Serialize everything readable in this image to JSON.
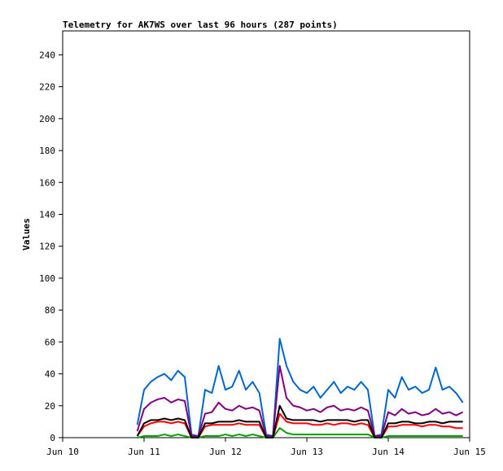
{
  "chart_data": {
    "type": "line",
    "title": "Telemetry for AK7WS over last 96 hours (287 points)",
    "y_label": "Values",
    "x": [
      22,
      24,
      26,
      28,
      30,
      32,
      34,
      36,
      38,
      40,
      42,
      44,
      46,
      48,
      50,
      52,
      54,
      56,
      58,
      60,
      62,
      64,
      66,
      68,
      70,
      72,
      74,
      76,
      78,
      80,
      82,
      84,
      86,
      88,
      90,
      92,
      94,
      96,
      98,
      100,
      102,
      104,
      106,
      108,
      110,
      112,
      114,
      116,
      118
    ],
    "xlim": [
      0,
      120
    ],
    "xticks": [
      {
        "value": 0,
        "label": "Jun 10"
      },
      {
        "value": 24,
        "label": "Jun 11"
      },
      {
        "value": 48,
        "label": "Jun 12"
      },
      {
        "value": 72,
        "label": "Jun 13"
      },
      {
        "value": 96,
        "label": "Jun 14"
      },
      {
        "value": 120,
        "label": "Jun 15"
      }
    ],
    "ylim": [
      0,
      255
    ],
    "yticks": [
      0,
      20,
      40,
      60,
      80,
      100,
      120,
      140,
      160,
      180,
      200,
      220,
      240
    ],
    "series": [
      {
        "color": "#0066cc",
        "values": [
          8,
          30,
          35,
          38,
          40,
          36,
          42,
          38,
          2,
          1,
          30,
          28,
          45,
          30,
          32,
          42,
          30,
          35,
          28,
          2,
          1,
          62,
          45,
          35,
          30,
          28,
          32,
          25,
          30,
          35,
          28,
          32,
          30,
          35,
          30,
          1,
          2,
          30,
          25,
          38,
          30,
          32,
          28,
          30,
          44,
          30,
          32,
          28,
          22
        ]
      },
      {
        "color": "#800080",
        "values": [
          4,
          18,
          22,
          24,
          25,
          22,
          24,
          23,
          1,
          1,
          15,
          16,
          22,
          18,
          17,
          20,
          18,
          19,
          17,
          1,
          1,
          45,
          25,
          20,
          19,
          17,
          18,
          16,
          19,
          20,
          17,
          18,
          17,
          19,
          17,
          1,
          1,
          16,
          14,
          18,
          15,
          16,
          14,
          15,
          18,
          15,
          16,
          14,
          16
        ]
      },
      {
        "color": "#ff0000",
        "values": [
          1,
          7,
          9,
          10,
          10,
          9,
          10,
          9,
          0,
          0,
          7,
          8,
          8,
          8,
          8,
          9,
          8,
          8,
          8,
          0,
          0,
          15,
          10,
          9,
          9,
          9,
          8,
          8,
          9,
          8,
          9,
          9,
          8,
          9,
          8,
          0,
          0,
          7,
          7,
          8,
          8,
          8,
          7,
          8,
          8,
          7,
          7,
          6,
          6
        ]
      },
      {
        "color": "#00a000",
        "values": [
          0,
          1,
          1,
          1,
          2,
          1,
          2,
          1,
          0,
          0,
          1,
          1,
          1,
          2,
          1,
          2,
          1,
          2,
          1,
          0,
          0,
          6,
          3,
          2,
          2,
          2,
          2,
          2,
          2,
          2,
          2,
          2,
          2,
          2,
          2,
          0,
          0,
          1,
          1,
          1,
          1,
          1,
          1,
          1,
          1,
          1,
          1,
          1,
          1
        ]
      },
      {
        "color": "#000000",
        "values": [
          1,
          9,
          11,
          11,
          12,
          11,
          12,
          11,
          0,
          0,
          9,
          9,
          10,
          10,
          10,
          11,
          10,
          10,
          10,
          0,
          0,
          20,
          12,
          11,
          11,
          11,
          11,
          10,
          11,
          11,
          11,
          11,
          10,
          11,
          11,
          0,
          0,
          9,
          9,
          10,
          10,
          9,
          9,
          10,
          10,
          9,
          10,
          10,
          10
        ]
      }
    ]
  }
}
